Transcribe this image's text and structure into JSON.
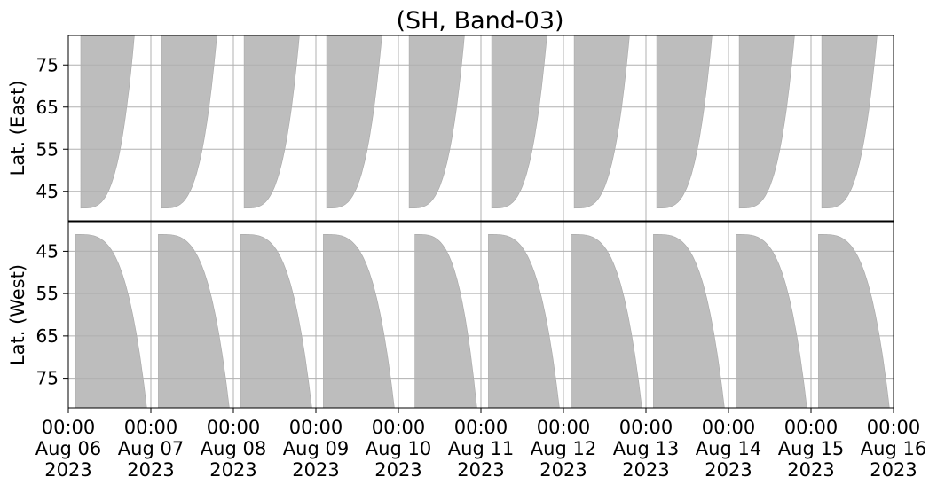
{
  "chart_data": {
    "type": "area",
    "title": "(SH, Band-03)",
    "grid": true,
    "x": {
      "range": [
        "2023-08-06 00:00",
        "2023-08-16 00:00"
      ],
      "ticks": [
        {
          "time": "00:00",
          "date": "Aug 06",
          "year": "2023"
        },
        {
          "time": "00:00",
          "date": "Aug 07",
          "year": "2023"
        },
        {
          "time": "00:00",
          "date": "Aug 08",
          "year": "2023"
        },
        {
          "time": "00:00",
          "date": "Aug 09",
          "year": "2023"
        },
        {
          "time": "00:00",
          "date": "Aug 10",
          "year": "2023"
        },
        {
          "time": "00:00",
          "date": "Aug 11",
          "year": "2023"
        },
        {
          "time": "00:00",
          "date": "Aug 12",
          "year": "2023"
        },
        {
          "time": "00:00",
          "date": "Aug 13",
          "year": "2023"
        },
        {
          "time": "00:00",
          "date": "Aug 14",
          "year": "2023"
        },
        {
          "time": "00:00",
          "date": "Aug 15",
          "year": "2023"
        },
        {
          "time": "00:00",
          "date": "Aug 16",
          "year": "2023"
        }
      ]
    },
    "panels": [
      {
        "name": "east",
        "ylabel": "Lat. (East)",
        "ylim": [
          38,
          82
        ],
        "inverted": false,
        "yticks": [
          45,
          55,
          65,
          75
        ],
        "coverage": [
          {
            "start_day": 0.15,
            "end_day": 0.8,
            "edge_lat": 41,
            "fill_lat": 82
          },
          {
            "start_day": 1.13,
            "end_day": 1.8,
            "edge_lat": 41,
            "fill_lat": 82
          },
          {
            "start_day": 2.13,
            "end_day": 2.8,
            "edge_lat": 41,
            "fill_lat": 82
          },
          {
            "start_day": 3.13,
            "end_day": 3.8,
            "edge_lat": 41,
            "fill_lat": 82
          },
          {
            "start_day": 4.13,
            "end_day": 4.8,
            "edge_lat": 41,
            "fill_lat": 82
          },
          {
            "start_day": 5.13,
            "end_day": 5.8,
            "edge_lat": 41,
            "fill_lat": 82
          },
          {
            "start_day": 6.13,
            "end_day": 6.8,
            "edge_lat": 41,
            "fill_lat": 82
          },
          {
            "start_day": 7.13,
            "end_day": 7.8,
            "edge_lat": 41,
            "fill_lat": 82
          },
          {
            "start_day": 8.13,
            "end_day": 8.8,
            "edge_lat": 41,
            "fill_lat": 82
          },
          {
            "start_day": 9.13,
            "end_day": 9.8,
            "edge_lat": 41,
            "fill_lat": 82
          }
        ]
      },
      {
        "name": "west",
        "ylabel": "Lat. (West)",
        "ylim": [
          38,
          82
        ],
        "inverted": true,
        "yticks": [
          75,
          65,
          55,
          45
        ],
        "coverage": [
          {
            "start_day": 0.09,
            "end_day": 0.95,
            "edge_lat": 41,
            "fill_lat": 82
          },
          {
            "start_day": 1.09,
            "end_day": 1.95,
            "edge_lat": 41,
            "fill_lat": 82
          },
          {
            "start_day": 2.09,
            "end_day": 2.95,
            "edge_lat": 41,
            "fill_lat": 82
          },
          {
            "start_day": 3.09,
            "end_day": 3.95,
            "edge_lat": 41,
            "fill_lat": 82
          },
          {
            "start_day": 4.2,
            "end_day": 4.95,
            "edge_lat": 41,
            "fill_lat": 82
          },
          {
            "start_day": 5.09,
            "end_day": 5.95,
            "edge_lat": 41,
            "fill_lat": 82
          },
          {
            "start_day": 6.09,
            "end_day": 6.95,
            "edge_lat": 41,
            "fill_lat": 82
          },
          {
            "start_day": 7.09,
            "end_day": 7.95,
            "edge_lat": 41,
            "fill_lat": 82
          },
          {
            "start_day": 8.09,
            "end_day": 8.95,
            "edge_lat": 41,
            "fill_lat": 82
          },
          {
            "start_day": 9.09,
            "end_day": 9.95,
            "edge_lat": 41,
            "fill_lat": 82
          }
        ]
      }
    ],
    "colors": {
      "fill": "#bdbdbd",
      "grid": "#b0b0b0",
      "axis": "#000000"
    }
  }
}
